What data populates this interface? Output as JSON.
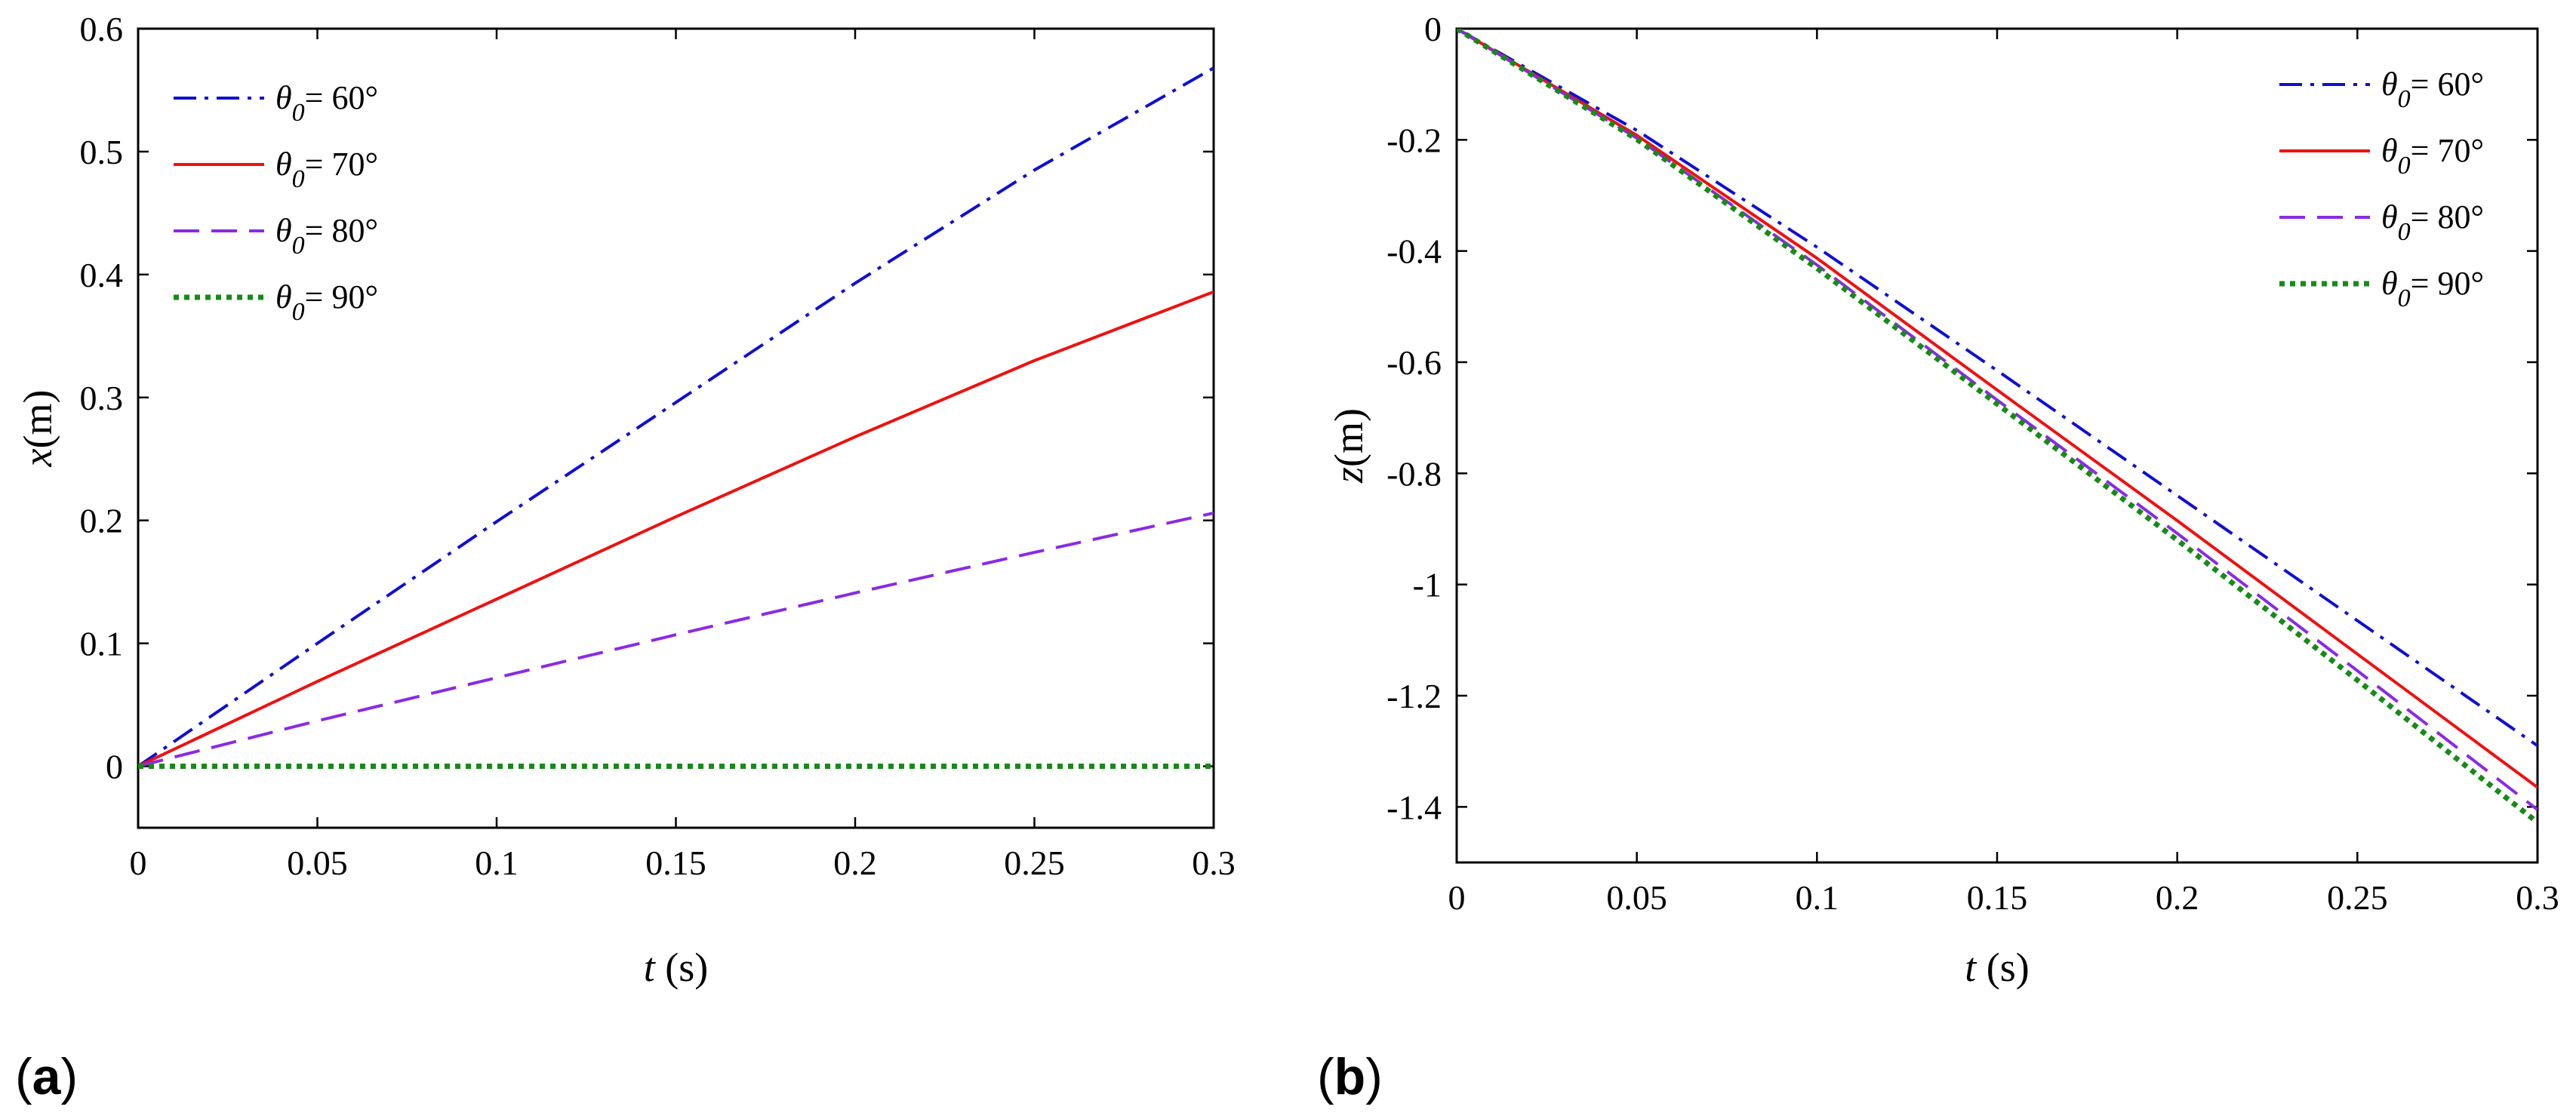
{
  "chart_data": [
    {
      "type": "line",
      "panel_label": "a",
      "xlabel_var": "t",
      "xlabel_unit": " (s)",
      "ylabel_var": "x",
      "ylabel_unit": "(m)",
      "xlim": [
        0,
        0.3
      ],
      "ylim": [
        -0.05,
        0.6
      ],
      "xticks": [
        0,
        0.05,
        0.1,
        0.15,
        0.2,
        0.25,
        0.3
      ],
      "xtick_labels": [
        "0",
        "0.05",
        "0.1",
        "0.15",
        "0.2",
        "0.25",
        "0.3"
      ],
      "yticks": [
        0,
        0.1,
        0.2,
        0.3,
        0.4,
        0.5,
        0.6
      ],
      "ytick_labels": [
        "0",
        "0.1",
        "0.2",
        "0.3",
        "0.4",
        "0.5",
        "0.6"
      ],
      "legend_position": "top-left",
      "x": [
        0,
        0.05,
        0.1,
        0.15,
        0.2,
        0.25,
        0.3
      ],
      "series": [
        {
          "name_var": "θ",
          "name_sub": "0",
          "name_val": "= 60°",
          "color": "#1010d0",
          "style": "dashdot",
          "values": [
            0,
            0.1,
            0.199,
            0.296,
            0.393,
            0.485,
            0.568
          ]
        },
        {
          "name_var": "θ",
          "name_sub": "0",
          "name_val": "= 70°",
          "color": "#ee1111",
          "style": "solid",
          "values": [
            0,
            0.069,
            0.136,
            0.203,
            0.268,
            0.33,
            0.386
          ]
        },
        {
          "name_var": "θ",
          "name_sub": "0",
          "name_val": "= 80°",
          "color": "#8a2be2",
          "style": "dashed",
          "values": [
            0,
            0.037,
            0.072,
            0.107,
            0.141,
            0.174,
            0.206
          ]
        },
        {
          "name_var": "θ",
          "name_sub": "0",
          "name_val": "= 90°",
          "color": "#178a17",
          "style": "dotted",
          "values": [
            0,
            0,
            0,
            0,
            0,
            0,
            0
          ]
        }
      ]
    },
    {
      "type": "line",
      "panel_label": "b",
      "xlabel_var": "t",
      "xlabel_unit": " (s)",
      "ylabel_var": "z",
      "ylabel_unit": "(m)",
      "xlim": [
        0,
        0.3
      ],
      "ylim": [
        -1.5,
        0
      ],
      "xticks": [
        0,
        0.05,
        0.1,
        0.15,
        0.2,
        0.25,
        0.3
      ],
      "xtick_labels": [
        "0",
        "0.05",
        "0.1",
        "0.15",
        "0.2",
        "0.25",
        "0.3"
      ],
      "yticks": [
        0,
        -0.2,
        -0.4,
        -0.6,
        -0.8,
        -1,
        -1.2,
        -1.4
      ],
      "ytick_labels": [
        "0",
        "-0.2",
        "-0.4",
        "-0.6",
        "-0.8",
        "-1",
        "-1.2",
        "-1.4"
      ],
      "legend_position": "top-right",
      "x": [
        0,
        0.05,
        0.1,
        0.15,
        0.2,
        0.25,
        0.3
      ],
      "series": [
        {
          "name_var": "θ",
          "name_sub": "0",
          "name_val": "= 60°",
          "color": "#1010d0",
          "style": "dashdot",
          "values": [
            0,
            -0.183,
            -0.393,
            -0.615,
            -0.84,
            -1.065,
            -1.29
          ]
        },
        {
          "name_var": "θ",
          "name_sub": "0",
          "name_val": "= 70°",
          "color": "#ee1111",
          "style": "solid",
          "values": [
            0,
            -0.192,
            -0.413,
            -0.65,
            -0.885,
            -1.125,
            -1.365
          ]
        },
        {
          "name_var": "θ",
          "name_sub": "0",
          "name_val": "= 80°",
          "color": "#8a2be2",
          "style": "dashed",
          "values": [
            0,
            -0.197,
            -0.425,
            -0.668,
            -0.908,
            -1.155,
            -1.405
          ]
        },
        {
          "name_var": "θ",
          "name_sub": "0",
          "name_val": "= 90°",
          "color": "#178a17",
          "style": "dotted",
          "values": [
            0,
            -0.199,
            -0.431,
            -0.675,
            -0.92,
            -1.172,
            -1.428
          ]
        }
      ]
    }
  ]
}
